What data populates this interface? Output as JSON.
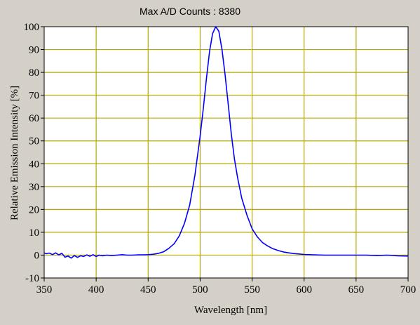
{
  "chart_data": {
    "type": "line",
    "title": "Max A/D Counts : 8380",
    "xlabel": "Wavelength [nm]",
    "ylabel": "Relative Emission Intensity [%]",
    "xlim": [
      350,
      700
    ],
    "ylim": [
      -10,
      100
    ],
    "x_ticks": [
      350,
      400,
      450,
      500,
      550,
      600,
      650,
      700
    ],
    "y_ticks": [
      -10,
      0,
      10,
      20,
      30,
      40,
      50,
      60,
      70,
      80,
      90,
      100
    ],
    "grid": true,
    "colors": {
      "line": "#0000ff",
      "grid": "#b8a800",
      "plot_bg": "#ffffff",
      "window_bg": "#d4d0c8"
    },
    "series": [
      {
        "x": [
          350,
          352,
          355,
          358,
          361,
          364,
          367,
          370,
          373,
          376,
          379,
          382,
          385,
          388,
          391,
          394,
          397,
          400,
          403,
          406,
          410,
          415,
          420,
          425,
          430,
          435,
          440,
          445,
          450,
          455,
          460,
          465,
          470,
          475,
          480,
          485,
          490,
          495,
          500,
          503,
          506,
          509,
          512,
          515,
          518,
          521,
          524,
          527,
          530,
          533,
          536,
          540,
          545,
          550,
          555,
          560,
          565,
          570,
          575,
          580,
          585,
          590,
          595,
          600,
          610,
          620,
          630,
          640,
          650,
          660,
          670,
          680,
          690,
          700
        ],
        "values": [
          1,
          0.6,
          0.9,
          0.2,
          1,
          0.1,
          0.8,
          -0.9,
          -0.4,
          -1.3,
          -0.2,
          -1,
          -0.3,
          -0.6,
          0.1,
          -0.5,
          0.2,
          -0.6,
          0,
          -0.3,
          0,
          -0.2,
          0,
          0.2,
          0,
          0,
          0.1,
          0.1,
          0.2,
          0.4,
          0.8,
          1.5,
          3,
          5,
          8.5,
          14,
          22,
          35,
          52,
          64,
          77,
          89,
          97,
          100,
          98,
          90,
          79,
          66,
          53,
          42,
          34,
          25,
          17.5,
          11.5,
          8,
          5.5,
          4,
          2.8,
          2,
          1.4,
          1,
          0.7,
          0.5,
          0.3,
          0.1,
          0,
          0,
          0,
          0,
          0,
          -0.2,
          0,
          -0.3,
          -0.4
        ]
      }
    ]
  }
}
